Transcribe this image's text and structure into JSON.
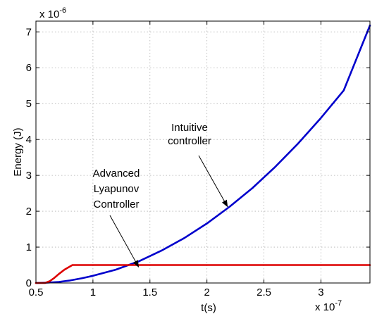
{
  "chart_data": {
    "type": "line",
    "title": "",
    "xlabel": "t(s)",
    "ylabel": "Energy (J)",
    "x_multiplier": "x 10",
    "x_exponent": "-7",
    "y_multiplier": "x 10",
    "y_exponent": "-6",
    "xlim": [
      0.5,
      3.43
    ],
    "ylim": [
      0,
      7.3
    ],
    "xticks": [
      0.5,
      1,
      1.5,
      2,
      2.5,
      3
    ],
    "xtick_labels": [
      "0.5",
      "1",
      "1.5",
      "2",
      "2.5",
      "3"
    ],
    "yticks": [
      0,
      1,
      2,
      3,
      4,
      5,
      6,
      7
    ],
    "ytick_labels": [
      "0",
      "1",
      "2",
      "3",
      "4",
      "5",
      "6",
      "7"
    ],
    "grid": true,
    "series": [
      {
        "color": "#0000cc",
        "x": [
          0.5,
          0.6,
          0.7,
          0.8,
          0.9,
          1.0,
          1.2,
          1.4,
          1.6,
          1.8,
          2.0,
          2.2,
          2.4,
          2.6,
          2.8,
          3.0,
          3.2,
          3.43
        ],
        "y": [
          0,
          0.01,
          0.03,
          0.07,
          0.13,
          0.2,
          0.37,
          0.6,
          0.9,
          1.25,
          1.66,
          2.13,
          2.65,
          3.24,
          3.89,
          4.6,
          5.37,
          7.18
        ]
      },
      {
        "color": "#dd0000",
        "x": [
          0.5,
          0.58,
          0.62,
          0.66,
          0.7,
          0.75,
          0.82,
          1.0,
          2.0,
          3.43
        ],
        "y": [
          0,
          0,
          0.05,
          0.14,
          0.25,
          0.37,
          0.5,
          0.5,
          0.5,
          0.5
        ]
      }
    ],
    "annotations": [
      {
        "lines": [
          "Intuitive",
          "controller"
        ],
        "target": [
          2.18,
          2.13
        ]
      },
      {
        "lines": [
          "Advanced",
          "Lyapunov",
          "Controller"
        ],
        "target": [
          1.4,
          0.45
        ]
      }
    ]
  }
}
